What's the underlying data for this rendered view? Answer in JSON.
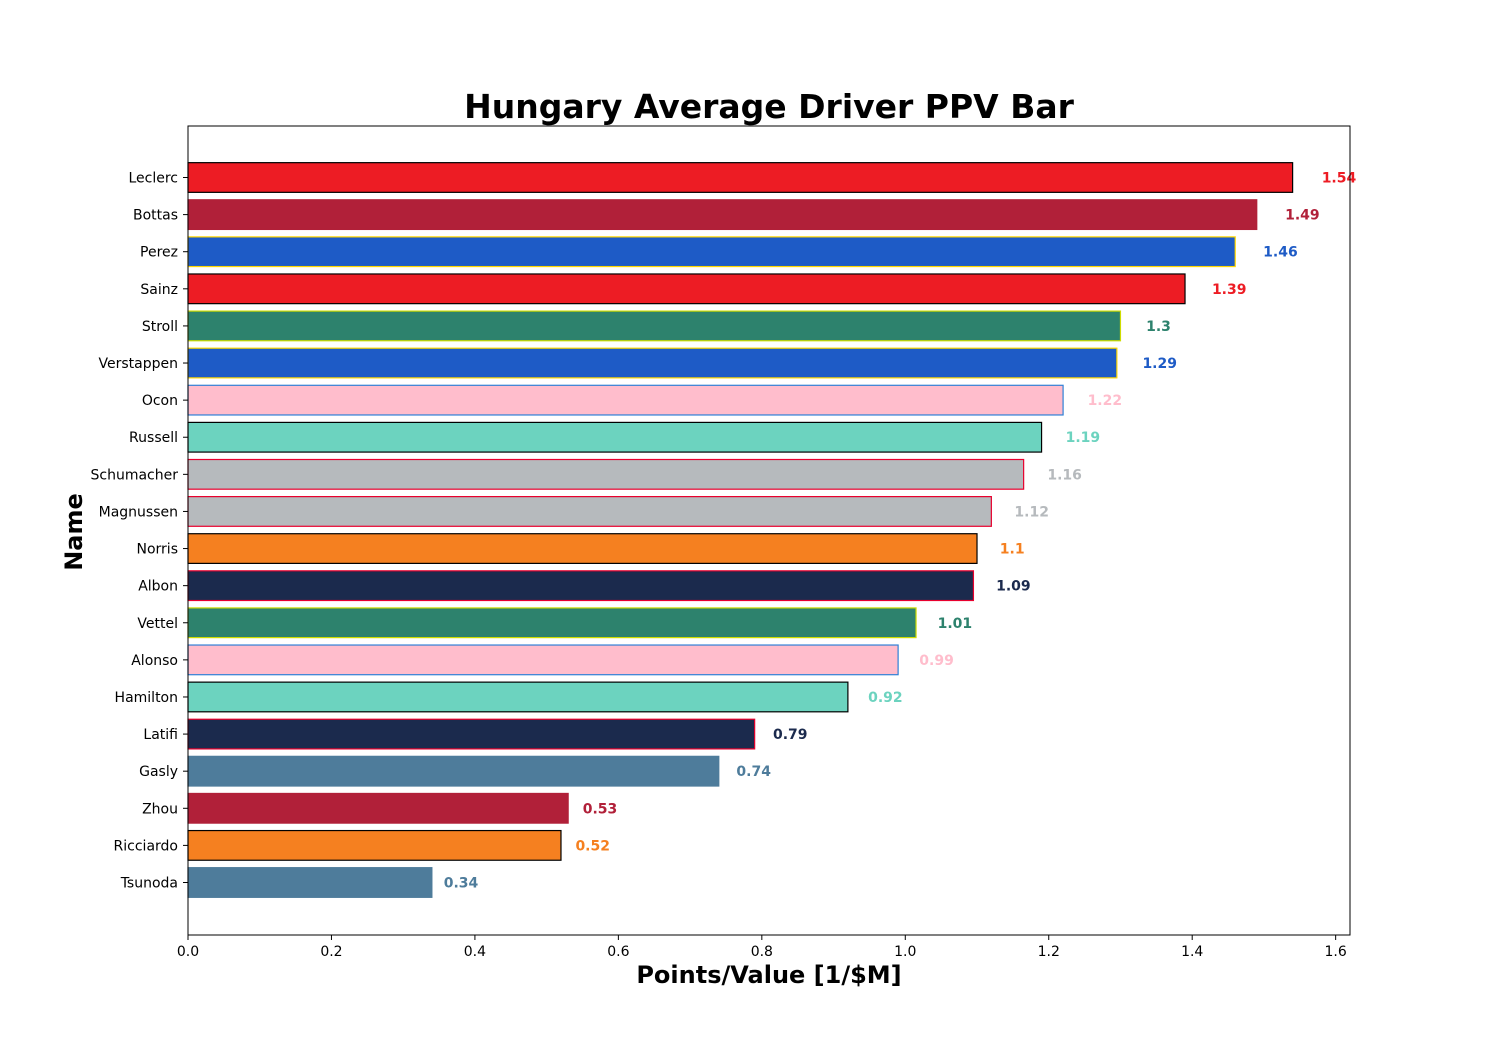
{
  "chart_data": {
    "type": "bar",
    "orientation": "horizontal",
    "title": "Hungary Average Driver PPV Bar",
    "xlabel": "Points/Value [1/$M]",
    "ylabel": "Name",
    "xlim": [
      0,
      1.62
    ],
    "xticks": [
      0.0,
      0.2,
      0.4,
      0.6,
      0.8,
      1.0,
      1.2,
      1.4,
      1.6
    ],
    "xtick_labels": [
      "0.0",
      "0.2",
      "0.4",
      "0.6",
      "0.8",
      "1.0",
      "1.2",
      "1.4",
      "1.6"
    ],
    "grid": false,
    "bars": [
      {
        "name": "Leclerc",
        "value": 1.54,
        "label": "1.54",
        "fill": "#ED1C24",
        "edge": "#000000"
      },
      {
        "name": "Bottas",
        "value": 1.49,
        "label": "1.49",
        "fill": "#B12039",
        "edge": "#B12039"
      },
      {
        "name": "Perez",
        "value": 1.46,
        "label": "1.46",
        "fill": "#1E5BC6",
        "edge": "#FFD700"
      },
      {
        "name": "Sainz",
        "value": 1.39,
        "label": "1.39",
        "fill": "#ED1C24",
        "edge": "#000000"
      },
      {
        "name": "Stroll",
        "value": 1.3,
        "label": "1.3",
        "fill": "#2D826D",
        "edge": "#CEDC00"
      },
      {
        "name": "Verstappen",
        "value": 1.295,
        "label": "1.29",
        "fill": "#1E5BC6",
        "edge": "#FFD700"
      },
      {
        "name": "Ocon",
        "value": 1.22,
        "label": "1.22",
        "fill": "#FFBDCC",
        "edge": "#2F80D6"
      },
      {
        "name": "Russell",
        "value": 1.19,
        "label": "1.19",
        "fill": "#6CD3BF",
        "edge": "#000000"
      },
      {
        "name": "Schumacher",
        "value": 1.165,
        "label": "1.16",
        "fill": "#B6BABD",
        "edge": "#E8002D"
      },
      {
        "name": "Magnussen",
        "value": 1.12,
        "label": "1.12",
        "fill": "#B6BABD",
        "edge": "#E8002D"
      },
      {
        "name": "Norris",
        "value": 1.1,
        "label": "1.1",
        "fill": "#F58020",
        "edge": "#000000"
      },
      {
        "name": "Albon",
        "value": 1.095,
        "label": "1.09",
        "fill": "#1B2A4D",
        "edge": "#E8002D"
      },
      {
        "name": "Vettel",
        "value": 1.015,
        "label": "1.01",
        "fill": "#2D826D",
        "edge": "#CEDC00"
      },
      {
        "name": "Alonso",
        "value": 0.99,
        "label": "0.99",
        "fill": "#FFBDCC",
        "edge": "#2F80D6"
      },
      {
        "name": "Hamilton",
        "value": 0.92,
        "label": "0.92",
        "fill": "#6CD3BF",
        "edge": "#000000"
      },
      {
        "name": "Latifi",
        "value": 0.79,
        "label": "0.79",
        "fill": "#1B2A4D",
        "edge": "#E8002D"
      },
      {
        "name": "Gasly",
        "value": 0.74,
        "label": "0.74",
        "fill": "#4E7C9B",
        "edge": "#4E7C9B"
      },
      {
        "name": "Zhou",
        "value": 0.53,
        "label": "0.53",
        "fill": "#B12039",
        "edge": "#B12039"
      },
      {
        "name": "Ricciardo",
        "value": 0.52,
        "label": "0.52",
        "fill": "#F58020",
        "edge": "#000000"
      },
      {
        "name": "Tsunoda",
        "value": 0.34,
        "label": "0.34",
        "fill": "#4E7C9B",
        "edge": "#4E7C9B"
      }
    ]
  }
}
